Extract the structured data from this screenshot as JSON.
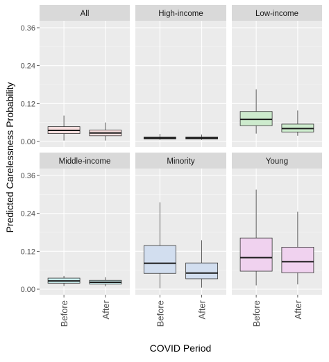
{
  "chart_data": {
    "type": "boxplot",
    "facet_layout": "2x3",
    "xlabel": "COVID Period",
    "ylabel": "Predicted Carelessness Probability",
    "ylim": [
      -0.01,
      0.375
    ],
    "yticks": [
      0.0,
      0.12,
      0.24,
      0.36
    ],
    "ytick_labels": [
      "0.00",
      "0.12",
      "0.24",
      "0.36"
    ],
    "categories": [
      "Before",
      "After"
    ],
    "grid": true,
    "legend": "none",
    "panels": [
      {
        "name": "All",
        "fill": "#f8dede",
        "boxes": [
          {
            "category": "Before",
            "min": 0.003,
            "q1": 0.025,
            "median": 0.035,
            "q3": 0.047,
            "max": 0.082
          },
          {
            "category": "After",
            "min": 0.003,
            "q1": 0.018,
            "median": 0.027,
            "q3": 0.036,
            "max": 0.06
          }
        ]
      },
      {
        "name": "High-income",
        "fill": "#d8d8d8",
        "boxes": [
          {
            "category": "Before",
            "min": 0.005,
            "q1": 0.008,
            "median": 0.011,
            "q3": 0.014,
            "max": 0.024
          },
          {
            "category": "After",
            "min": 0.005,
            "q1": 0.008,
            "median": 0.011,
            "q3": 0.014,
            "max": 0.022
          }
        ]
      },
      {
        "name": "Low-income",
        "fill": "#cdebcd",
        "boxes": [
          {
            "category": "Before",
            "min": 0.025,
            "q1": 0.05,
            "median": 0.07,
            "q3": 0.095,
            "max": 0.165
          },
          {
            "category": "After",
            "min": 0.018,
            "q1": 0.03,
            "median": 0.041,
            "q3": 0.055,
            "max": 0.098
          }
        ]
      },
      {
        "name": "Middle-income",
        "fill": "#c9ecec",
        "boxes": [
          {
            "category": "Before",
            "min": 0.01,
            "q1": 0.019,
            "median": 0.026,
            "q3": 0.035,
            "max": 0.042
          },
          {
            "category": "After",
            "min": 0.009,
            "q1": 0.016,
            "median": 0.022,
            "q3": 0.028,
            "max": 0.038
          }
        ]
      },
      {
        "name": "Minority",
        "fill": "#d2deef",
        "boxes": [
          {
            "category": "Before",
            "min": 0.003,
            "q1": 0.05,
            "median": 0.082,
            "q3": 0.138,
            "max": 0.275
          },
          {
            "category": "After",
            "min": 0.005,
            "q1": 0.033,
            "median": 0.051,
            "q3": 0.083,
            "max": 0.155
          }
        ]
      },
      {
        "name": "Young",
        "fill": "#f0d2ef",
        "boxes": [
          {
            "category": "Before",
            "min": 0.012,
            "q1": 0.057,
            "median": 0.1,
            "q3": 0.162,
            "max": 0.315
          },
          {
            "category": "After",
            "min": 0.015,
            "q1": 0.052,
            "median": 0.087,
            "q3": 0.133,
            "max": 0.245
          }
        ]
      }
    ]
  }
}
